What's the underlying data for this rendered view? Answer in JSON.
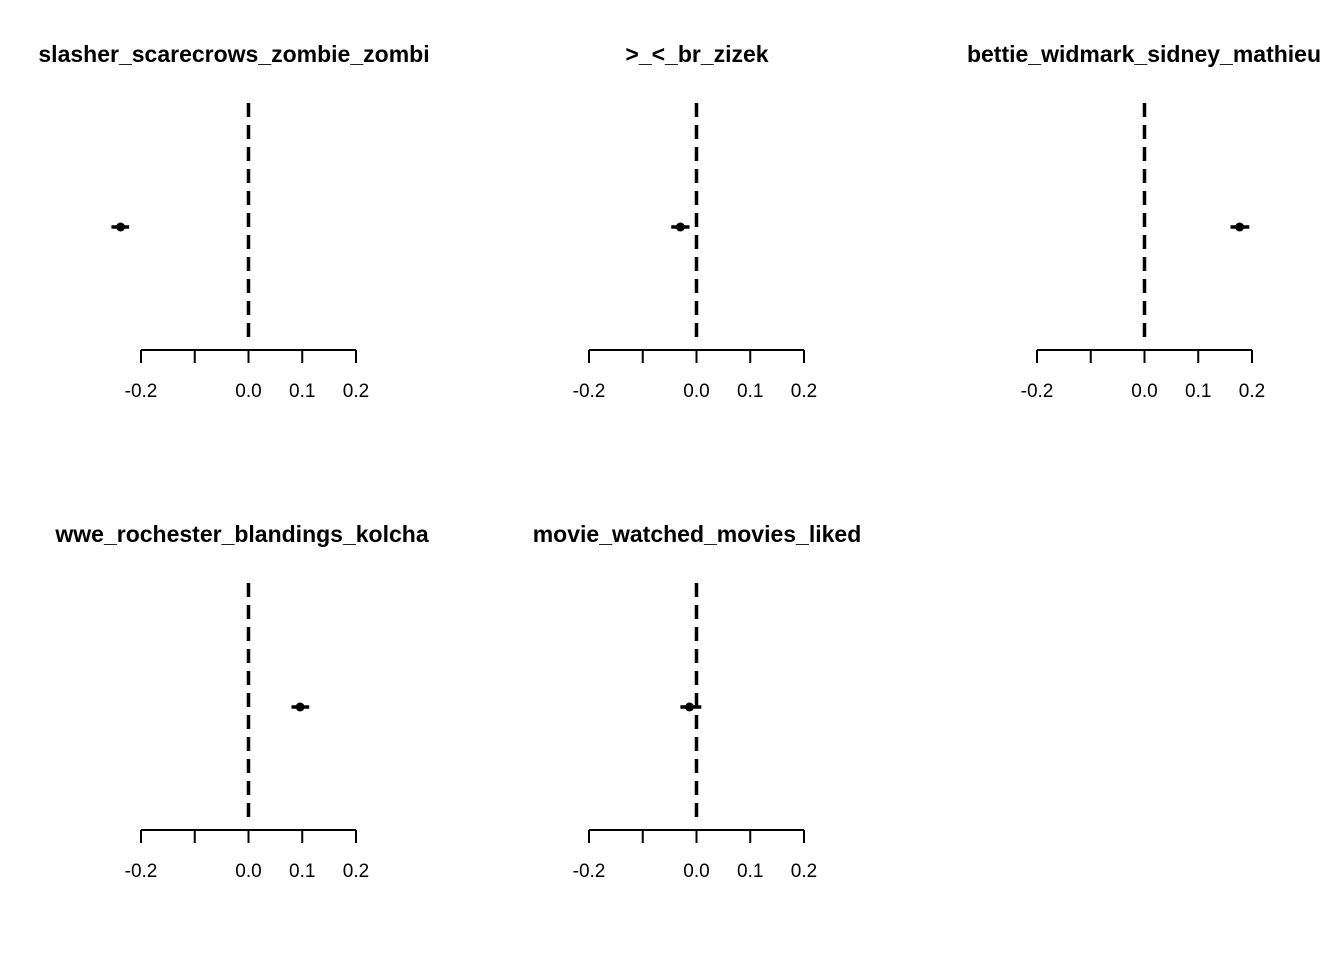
{
  "colors": {
    "background": "#ffffff",
    "ink": "#000000"
  },
  "chart_data": [
    {
      "type": "scatter",
      "title": "slasher_scarecrows_zombie_zombi",
      "xlim": [
        -0.2,
        0.2
      ],
      "reference_line_x": 0.0,
      "axis_ticks": [
        -0.2,
        -0.1,
        0.0,
        0.1,
        0.2
      ],
      "tick_labels": [
        "-0.2",
        "0.0",
        "0.1",
        "0.2"
      ],
      "estimate": -0.238,
      "ci": [
        -0.255,
        -0.222
      ]
    },
    {
      "type": "scatter",
      "title": ">_<_br_zizek",
      "xlim": [
        -0.2,
        0.2
      ],
      "reference_line_x": 0.0,
      "axis_ticks": [
        -0.2,
        -0.1,
        0.0,
        0.1,
        0.2
      ],
      "tick_labels": [
        "-0.2",
        "0.0",
        "0.1",
        "0.2"
      ],
      "estimate": -0.03,
      "ci": [
        -0.047,
        -0.013
      ]
    },
    {
      "type": "scatter",
      "title": "bettie_widmark_sidney_mathieu",
      "xlim": [
        -0.2,
        0.2
      ],
      "reference_line_x": 0.0,
      "axis_ticks": [
        -0.2,
        -0.1,
        0.0,
        0.1,
        0.2
      ],
      "tick_labels": [
        "-0.2",
        "0.0",
        "0.1",
        "0.2"
      ],
      "estimate": 0.177,
      "ci": [
        0.16,
        0.195
      ]
    },
    {
      "type": "scatter",
      "title": "wwe_rochester_blandings_kolcha",
      "xlim": [
        -0.2,
        0.2
      ],
      "reference_line_x": 0.0,
      "axis_ticks": [
        -0.2,
        -0.1,
        0.0,
        0.1,
        0.2
      ],
      "tick_labels": [
        "-0.2",
        "0.0",
        "0.1",
        "0.2"
      ],
      "estimate": 0.096,
      "ci": [
        0.08,
        0.113
      ]
    },
    {
      "type": "scatter",
      "title": "movie_watched_movies_liked",
      "xlim": [
        -0.2,
        0.2
      ],
      "reference_line_x": 0.0,
      "axis_ticks": [
        -0.2,
        -0.1,
        0.0,
        0.1,
        0.2
      ],
      "tick_labels": [
        "-0.2",
        "0.0",
        "0.1",
        "0.2"
      ],
      "estimate": -0.013,
      "ci": [
        -0.03,
        0.009
      ]
    }
  ]
}
